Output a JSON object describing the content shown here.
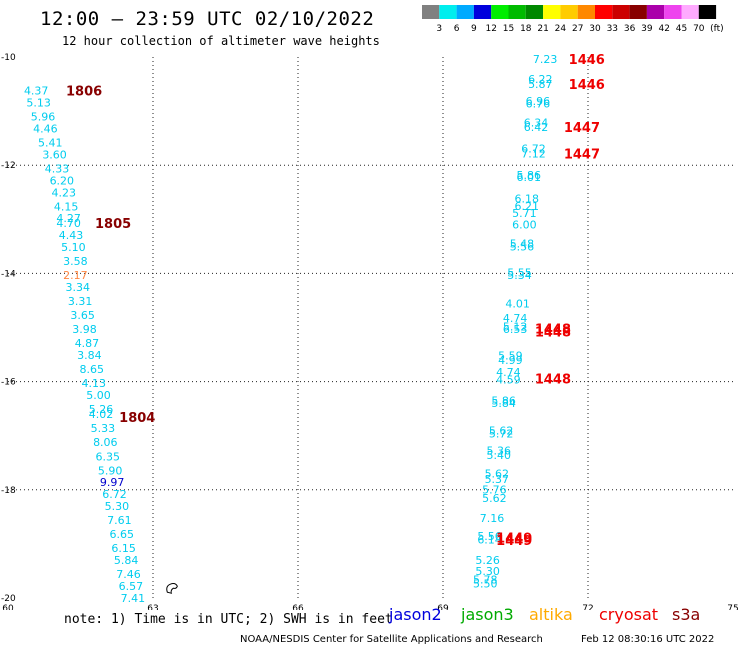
{
  "header": {
    "title": "12:00 – 23:59 UTC 02/10/2022",
    "subtitle": "12 hour collection of altimeter wave heights"
  },
  "colorbar": {
    "unit": "(ft)",
    "bins": [
      {
        "label": "3",
        "color": "#808080"
      },
      {
        "label": "6",
        "color": "#00eeee"
      },
      {
        "label": "9",
        "color": "#00aaff"
      },
      {
        "label": "12",
        "color": "#0000dd"
      },
      {
        "label": "15",
        "color": "#00ee00"
      },
      {
        "label": "18",
        "color": "#00bb00"
      },
      {
        "label": "21",
        "color": "#008800"
      },
      {
        "label": "24",
        "color": "#ffff00"
      },
      {
        "label": "27",
        "color": "#ffcc00"
      },
      {
        "label": "30",
        "color": "#ff8800"
      },
      {
        "label": "33",
        "color": "#ff0000"
      },
      {
        "label": "36",
        "color": "#cc0000"
      },
      {
        "label": "39",
        "color": "#880000"
      },
      {
        "label": "42",
        "color": "#aa00aa"
      },
      {
        "label": "45",
        "color": "#ee44ee"
      },
      {
        "label": "70",
        "color": "#ffaaff"
      },
      {
        "label": "",
        "color": "#000000"
      }
    ]
  },
  "chart_data": {
    "type": "scatter",
    "xlim": [
      60,
      75
    ],
    "ylim": [
      -20,
      -10
    ],
    "x_ticks": [
      {
        "value": 60,
        "label": "60"
      },
      {
        "value": 63,
        "label": "63"
      },
      {
        "value": 66,
        "label": "66"
      },
      {
        "value": 69,
        "label": "69"
      },
      {
        "value": 72,
        "label": "72"
      },
      {
        "value": 75,
        "label": "75"
      }
    ],
    "y_ticks": [
      {
        "value": -10,
        "label": "-10"
      },
      {
        "value": -12,
        "label": "-12"
      },
      {
        "value": -14,
        "label": "-14"
      },
      {
        "value": -16,
        "label": "-16"
      },
      {
        "value": -18,
        "label": "-18"
      },
      {
        "value": -20,
        "label": "-20"
      }
    ],
    "grid": true,
    "time_labels": [
      {
        "text": "1806",
        "x": 61.2,
        "y": -10.62,
        "color": "#880000"
      },
      {
        "text": "1805",
        "x": 61.8,
        "y": -13.07,
        "color": "#880000"
      },
      {
        "text": "1804",
        "x": 62.3,
        "y": -16.65,
        "color": "#880000"
      },
      {
        "text": "1446",
        "x": 71.6,
        "y": -10.04,
        "color": "#ee0000"
      },
      {
        "text": "1446",
        "x": 71.6,
        "y": -10.5,
        "color": "#ee0000"
      },
      {
        "text": "1447",
        "x": 71.5,
        "y": -11.29,
        "color": "#ee0000"
      },
      {
        "text": "1447",
        "x": 71.5,
        "y": -11.78,
        "color": "#ee0000"
      },
      {
        "text": "1448",
        "x": 70.9,
        "y": -15.02,
        "color": "#ee0000"
      },
      {
        "text": "1448",
        "x": 70.9,
        "y": -15.07,
        "color": "#ee0000"
      },
      {
        "text": "1448",
        "x": 70.9,
        "y": -15.94,
        "color": "#ee0000"
      },
      {
        "text": "1449",
        "x": 70.1,
        "y": -18.88,
        "color": "#ee0000"
      },
      {
        "text": "1449",
        "x": 70.1,
        "y": -18.93,
        "color": "#ee0000"
      }
    ],
    "points": [
      {
        "t": "4.37",
        "x": 60.33,
        "y": -10.62,
        "c": "#00ccee"
      },
      {
        "t": "5.13",
        "x": 60.38,
        "y": -10.84,
        "c": "#00ccee"
      },
      {
        "t": "5.96",
        "x": 60.47,
        "y": -11.1,
        "c": "#00ccee"
      },
      {
        "t": "4.46",
        "x": 60.52,
        "y": -11.32,
        "c": "#00ccee"
      },
      {
        "t": "5.41",
        "x": 60.62,
        "y": -11.58,
        "c": "#00ccee"
      },
      {
        "t": "3.60",
        "x": 60.71,
        "y": -11.8,
        "c": "#00ccee"
      },
      {
        "t": "4.33",
        "x": 60.76,
        "y": -12.06,
        "c": "#00ccee"
      },
      {
        "t": "6.20",
        "x": 60.86,
        "y": -12.28,
        "c": "#00ccee"
      },
      {
        "t": "4.23",
        "x": 60.9,
        "y": -12.5,
        "c": "#00ccee"
      },
      {
        "t": "4.15",
        "x": 60.95,
        "y": -12.76,
        "c": "#00ccee"
      },
      {
        "t": "4.27",
        "x": 61.0,
        "y": -12.98,
        "c": "#00ccee"
      },
      {
        "t": "4.70",
        "x": 61.0,
        "y": -13.07,
        "c": "#00ccee"
      },
      {
        "t": "4.43",
        "x": 61.05,
        "y": -13.29,
        "c": "#00ccee"
      },
      {
        "t": "5.10",
        "x": 61.1,
        "y": -13.51,
        "c": "#00ccee"
      },
      {
        "t": "3.58",
        "x": 61.14,
        "y": -13.77,
        "c": "#00ccee"
      },
      {
        "t": "2.17",
        "x": 61.14,
        "y": -14.03,
        "c": "#ff8844"
      },
      {
        "t": "3.34",
        "x": 61.19,
        "y": -14.25,
        "c": "#00ccee"
      },
      {
        "t": "3.31",
        "x": 61.24,
        "y": -14.51,
        "c": "#00ccee"
      },
      {
        "t": "3.65",
        "x": 61.29,
        "y": -14.77,
        "c": "#00ccee"
      },
      {
        "t": "3.98",
        "x": 61.33,
        "y": -15.03,
        "c": "#00ccee"
      },
      {
        "t": "4.87",
        "x": 61.38,
        "y": -15.29,
        "c": "#00ccee"
      },
      {
        "t": "3.84",
        "x": 61.43,
        "y": -15.51,
        "c": "#00ccee"
      },
      {
        "t": "8.65",
        "x": 61.48,
        "y": -15.77,
        "c": "#00ccee"
      },
      {
        "t": "4.13",
        "x": 61.52,
        "y": -16.03,
        "c": "#00ccee"
      },
      {
        "t": "5.00",
        "x": 61.62,
        "y": -16.25,
        "c": "#00ccee"
      },
      {
        "t": "5.26",
        "x": 61.67,
        "y": -16.51,
        "c": "#00ccee"
      },
      {
        "t": "4.02",
        "x": 61.67,
        "y": -16.6,
        "c": "#00ccee"
      },
      {
        "t": "5.33",
        "x": 61.71,
        "y": -16.86,
        "c": "#00ccee"
      },
      {
        "t": "8.06",
        "x": 61.76,
        "y": -17.12,
        "c": "#00ccee"
      },
      {
        "t": "6.35",
        "x": 61.81,
        "y": -17.38,
        "c": "#00ccee"
      },
      {
        "t": "5.90",
        "x": 61.86,
        "y": -17.64,
        "c": "#00ccee"
      },
      {
        "t": "9.97",
        "x": 61.9,
        "y": -17.86,
        "c": "#0000cc"
      },
      {
        "t": "6.72",
        "x": 61.95,
        "y": -18.08,
        "c": "#00ccee"
      },
      {
        "t": "5.30",
        "x": 62.0,
        "y": -18.3,
        "c": "#00ccee"
      },
      {
        "t": "7.61",
        "x": 62.05,
        "y": -18.56,
        "c": "#00ccee"
      },
      {
        "t": "6.65",
        "x": 62.1,
        "y": -18.82,
        "c": "#00ccee"
      },
      {
        "t": "6.15",
        "x": 62.14,
        "y": -19.08,
        "c": "#00ccee"
      },
      {
        "t": "5.84",
        "x": 62.19,
        "y": -19.3,
        "c": "#00ccee"
      },
      {
        "t": "7.46",
        "x": 62.24,
        "y": -19.56,
        "c": "#00ccee"
      },
      {
        "t": "6.57",
        "x": 62.29,
        "y": -19.78,
        "c": "#00ccee"
      },
      {
        "t": "7.41",
        "x": 62.33,
        "y": -20.0,
        "c": "#00ccee"
      },
      {
        "t": "7.23",
        "x": 70.86,
        "y": -10.04,
        "c": "#00ccee"
      },
      {
        "t": "6.22",
        "x": 70.76,
        "y": -10.41,
        "c": "#00ccee"
      },
      {
        "t": "5.87",
        "x": 70.76,
        "y": -10.5,
        "c": "#00ccee"
      },
      {
        "t": "6.96",
        "x": 70.71,
        "y": -10.81,
        "c": "#00ccee"
      },
      {
        "t": "6.76",
        "x": 70.71,
        "y": -10.86,
        "c": "#00ccee"
      },
      {
        "t": "6.34",
        "x": 70.67,
        "y": -11.21,
        "c": "#00ccee"
      },
      {
        "t": "6.42",
        "x": 70.67,
        "y": -11.29,
        "c": "#00ccee"
      },
      {
        "t": "6.72",
        "x": 70.62,
        "y": -11.69,
        "c": "#00ccee"
      },
      {
        "t": "7.12",
        "x": 70.62,
        "y": -11.78,
        "c": "#00ccee"
      },
      {
        "t": "5.86",
        "x": 70.52,
        "y": -12.18,
        "c": "#00ccee"
      },
      {
        "t": "6.01",
        "x": 70.52,
        "y": -12.22,
        "c": "#00ccee"
      },
      {
        "t": "6.18",
        "x": 70.48,
        "y": -12.62,
        "c": "#00ccee"
      },
      {
        "t": "6.21",
        "x": 70.48,
        "y": -12.75,
        "c": "#00ccee"
      },
      {
        "t": "5.71",
        "x": 70.43,
        "y": -12.88,
        "c": "#00ccee"
      },
      {
        "t": "6.00",
        "x": 70.43,
        "y": -13.1,
        "c": "#00ccee"
      },
      {
        "t": "5.48",
        "x": 70.38,
        "y": -13.45,
        "c": "#00ccee"
      },
      {
        "t": "5.56",
        "x": 70.38,
        "y": -13.5,
        "c": "#00ccee"
      },
      {
        "t": "5.55",
        "x": 70.33,
        "y": -13.98,
        "c": "#00ccee"
      },
      {
        "t": "5.34",
        "x": 70.33,
        "y": -14.03,
        "c": "#00ccee"
      },
      {
        "t": "4.01",
        "x": 70.29,
        "y": -14.56,
        "c": "#00ccee"
      },
      {
        "t": "4.74",
        "x": 70.24,
        "y": -14.82,
        "c": "#00ccee"
      },
      {
        "t": "5.12",
        "x": 70.24,
        "y": -14.98,
        "c": "#00ccee"
      },
      {
        "t": "6.53",
        "x": 70.24,
        "y": -15.03,
        "c": "#00ccee"
      },
      {
        "t": "5.59",
        "x": 70.14,
        "y": -15.52,
        "c": "#00ccee"
      },
      {
        "t": "4.99",
        "x": 70.14,
        "y": -15.6,
        "c": "#00ccee"
      },
      {
        "t": "4.74",
        "x": 70.1,
        "y": -15.82,
        "c": "#00ccee"
      },
      {
        "t": "4.59",
        "x": 70.1,
        "y": -15.96,
        "c": "#00ccee"
      },
      {
        "t": "5.86",
        "x": 70.0,
        "y": -16.35,
        "c": "#00ccee"
      },
      {
        "t": "5.84",
        "x": 70.0,
        "y": -16.4,
        "c": "#00ccee"
      },
      {
        "t": "5.62",
        "x": 69.95,
        "y": -16.9,
        "c": "#00ccee"
      },
      {
        "t": "5.72",
        "x": 69.95,
        "y": -16.96,
        "c": "#00ccee"
      },
      {
        "t": "5.36",
        "x": 69.9,
        "y": -17.27,
        "c": "#00ccee"
      },
      {
        "t": "5.40",
        "x": 69.9,
        "y": -17.36,
        "c": "#00ccee"
      },
      {
        "t": "5.62",
        "x": 69.86,
        "y": -17.7,
        "c": "#00ccee"
      },
      {
        "t": "5.37",
        "x": 69.86,
        "y": -17.8,
        "c": "#00ccee"
      },
      {
        "t": "5.76",
        "x": 69.81,
        "y": -17.99,
        "c": "#00ccee"
      },
      {
        "t": "5.62",
        "x": 69.81,
        "y": -18.15,
        "c": "#00ccee"
      },
      {
        "t": "7.16",
        "x": 69.76,
        "y": -18.52,
        "c": "#00ccee"
      },
      {
        "t": "5.56",
        "x": 69.71,
        "y": -18.85,
        "c": "#00ccee"
      },
      {
        "t": "6.14",
        "x": 69.71,
        "y": -18.92,
        "c": "#00ccee"
      },
      {
        "t": "5.26",
        "x": 69.67,
        "y": -19.3,
        "c": "#00ccee"
      },
      {
        "t": "5.30",
        "x": 69.67,
        "y": -19.5,
        "c": "#00ccee"
      },
      {
        "t": "5.78",
        "x": 69.62,
        "y": -19.66,
        "c": "#00ccee"
      },
      {
        "t": "5.50",
        "x": 69.62,
        "y": -19.73,
        "c": "#00ccee"
      }
    ],
    "land": {
      "label": "island",
      "x": 63.4,
      "y": -19.8
    }
  },
  "footer": {
    "note": "note: 1) Time is in UTC; 2) SWH is in feet",
    "satellites": [
      {
        "name": "jason2",
        "color": "#0000dd"
      },
      {
        "name": "jason3",
        "color": "#00aa00"
      },
      {
        "name": "altika",
        "color": "#ffaa00"
      },
      {
        "name": "cryosat",
        "color": "#ee0000"
      },
      {
        "name": "s3a",
        "color": "#880000"
      }
    ],
    "credit": "NOAA/NESDIS Center for Satellite Applications and Research",
    "timestamp": "Feb 12 08:30:16 UTC 2022"
  }
}
